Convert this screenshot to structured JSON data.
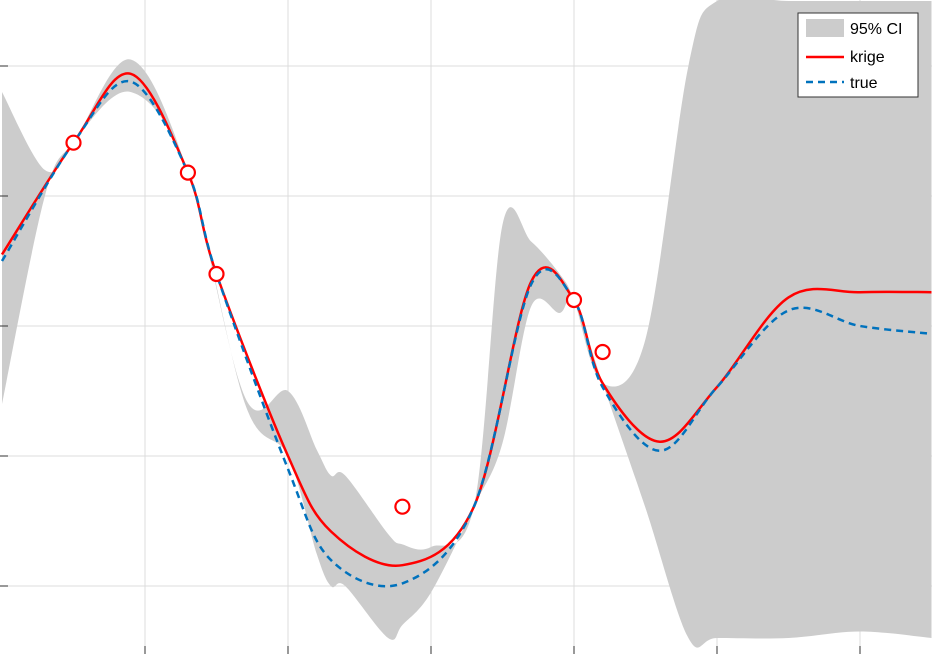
{
  "chart_data": {
    "type": "line",
    "title": "",
    "xlabel": "",
    "ylabel": "",
    "grid": true,
    "legend_position": "top-right",
    "xlim": [
      0,
      6.5
    ],
    "ylim": [
      -2.5,
      2.5
    ],
    "xticks": [
      1,
      2,
      3,
      4,
      5,
      6
    ],
    "yticks": [
      -2,
      -1,
      0,
      1,
      2
    ],
    "x": [
      0.0,
      0.5,
      0.9,
      1.3,
      1.5,
      2.0,
      2.3,
      2.8,
      3.3,
      3.7,
      4.0,
      4.2,
      4.6,
      5.0,
      5.5,
      6.0,
      6.5
    ],
    "series": [
      {
        "name": "krige",
        "color": "#ff0000",
        "dash": "solid",
        "values": [
          0.55,
          1.41,
          1.94,
          1.18,
          0.4,
          -1.0,
          -1.58,
          -1.84,
          -1.39,
          0.34,
          0.2,
          -0.44,
          -0.89,
          -0.47,
          0.22,
          0.26,
          0.26
        ]
      },
      {
        "name": "true",
        "color": "#0072bd",
        "dash": "dashed",
        "values": [
          0.5,
          1.41,
          1.88,
          1.18,
          0.4,
          -1.1,
          -1.8,
          -1.98,
          -1.39,
          0.32,
          0.2,
          -0.47,
          -0.96,
          -0.47,
          0.12,
          0.0,
          -0.06
        ]
      }
    ],
    "band": {
      "name": "95% CI",
      "color": "#cccccc",
      "x": [
        0.0,
        0.3,
        0.5,
        0.9,
        1.3,
        1.7,
        2.0,
        2.2,
        2.3,
        2.4,
        2.7,
        2.8,
        3.0,
        3.3,
        3.5,
        3.7,
        3.9,
        4.0,
        4.2,
        4.5,
        4.8,
        5.0,
        5.5,
        6.0,
        6.5
      ],
      "upper": [
        1.8,
        1.2,
        1.41,
        2.05,
        1.18,
        -0.55,
        -0.5,
        -0.95,
        -1.15,
        -1.15,
        -1.6,
        -1.68,
        -1.7,
        -1.39,
        0.78,
        0.65,
        0.4,
        0.2,
        -0.44,
        -0.1,
        2.0,
        2.5,
        2.5,
        2.5,
        2.5
      ],
      "lower": [
        -0.6,
        1.0,
        1.41,
        1.8,
        1.18,
        -0.6,
        -1.0,
        -1.75,
        -2.0,
        -2.0,
        -2.4,
        -2.3,
        -2.05,
        -1.39,
        -0.9,
        0.15,
        0.1,
        0.2,
        -0.44,
        -1.4,
        -2.4,
        -2.4,
        -2.4,
        -2.35,
        -2.4
      ]
    },
    "samples": {
      "name": "samples",
      "x": [
        0.5,
        1.3,
        1.5,
        2.8,
        4.0,
        4.2
      ],
      "y": [
        1.41,
        1.18,
        0.4,
        -1.39,
        0.2,
        -0.2
      ]
    },
    "legend": [
      "95% CI",
      "krige",
      "true"
    ]
  }
}
